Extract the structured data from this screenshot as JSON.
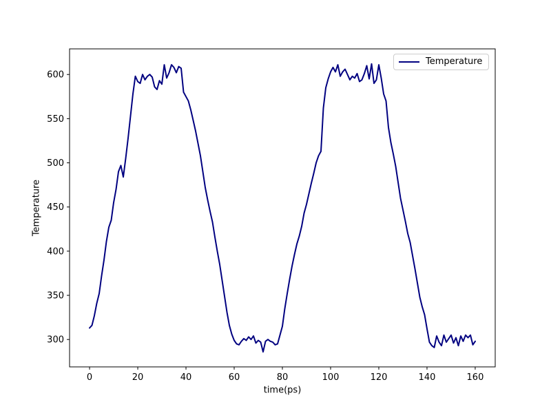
{
  "figure": {
    "background": "#ffffff"
  },
  "chart_data": {
    "type": "line",
    "title": "",
    "xlabel": "time(ps)",
    "ylabel": "Temperature",
    "legend": {
      "position": "upper right",
      "entries": [
        "Temperature"
      ]
    },
    "grid": false,
    "line_color": "#000080",
    "axis_color": "#000000",
    "x_ticks": [
      0,
      20,
      40,
      60,
      80,
      100,
      120,
      140,
      160
    ],
    "y_ticks": [
      300,
      350,
      400,
      450,
      500,
      550,
      600
    ],
    "xlim": [
      -8.3,
      168.3
    ],
    "ylim": [
      269,
      629
    ],
    "series": [
      {
        "name": "Temperature",
        "x_unit": "ps",
        "x_start": 0,
        "x_step": 1,
        "values": [
          313,
          316,
          327,
          341,
          352,
          372,
          390,
          411,
          427,
          435,
          455,
          470,
          490,
          497,
          484,
          505,
          528,
          553,
          578,
          598,
          592,
          590,
          600,
          594,
          598,
          600,
          597,
          586,
          583,
          593,
          589,
          611,
          596,
          602,
          611,
          608,
          602,
          609,
          607,
          580,
          575,
          570,
          560,
          548,
          536,
          522,
          508,
          490,
          472,
          458,
          445,
          433,
          416,
          400,
          385,
          367,
          349,
          331,
          316,
          306,
          299,
          295,
          294,
          298,
          301,
          299,
          303,
          300,
          304,
          296,
          299,
          297,
          286,
          298,
          300,
          298,
          297,
          294,
          295,
          305,
          315,
          335,
          352,
          368,
          383,
          396,
          408,
          417,
          428,
          443,
          453,
          465,
          477,
          488,
          500,
          508,
          513,
          562,
          585,
          595,
          603,
          608,
          603,
          611,
          598,
          603,
          606,
          600,
          594,
          598,
          596,
          601,
          592,
          594,
          601,
          610,
          595,
          612,
          590,
          594,
          611,
          596,
          578,
          570,
          540,
          523,
          510,
          496,
          478,
          460,
          447,
          434,
          420,
          410,
          395,
          380,
          364,
          348,
          337,
          328,
          312,
          297,
          293,
          291,
          304,
          297,
          293,
          305,
          297,
          301,
          305,
          296,
          302,
          293,
          304,
          298,
          305,
          302,
          305,
          294,
          298
        ]
      }
    ]
  }
}
